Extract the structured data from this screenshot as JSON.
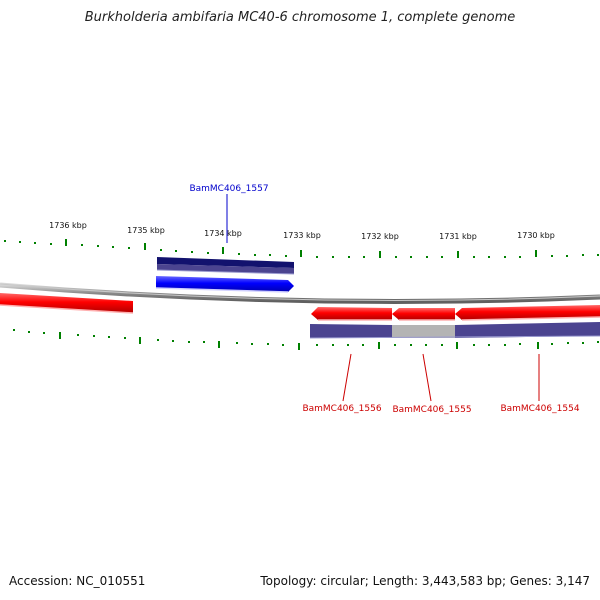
{
  "title": "Burkholderia ambifaria MC40-6 chromosome 1, complete genome",
  "footer": {
    "accession": "Accession: NC_010551",
    "summary": "Topology: circular; Length: 3,443,583 bp; Genes: 3,147"
  },
  "ticks": [
    {
      "label": "1736 kbp"
    },
    {
      "label": "1735 kbp"
    },
    {
      "label": "1734 kbp"
    },
    {
      "label": "1733 kbp"
    },
    {
      "label": "1732 kbp"
    },
    {
      "label": "1731 kbp"
    },
    {
      "label": "1730 kbp"
    }
  ],
  "genes": [
    {
      "label": "BamMC406_1557",
      "strand": "forward",
      "color": "#0000cc"
    },
    {
      "label": "BamMC406_1556",
      "strand": "reverse",
      "color": "#cc0000"
    },
    {
      "label": "BamMC406_1555",
      "strand": "reverse",
      "color": "#cc0000"
    },
    {
      "label": "BamMC406_1554",
      "strand": "reverse",
      "color": "#cc0000"
    }
  ],
  "colors": {
    "forward": "#0000ff",
    "reverse": "#ff0000",
    "backbone": "#808080",
    "tick": "#008000",
    "cds_track": "#4b4490"
  }
}
